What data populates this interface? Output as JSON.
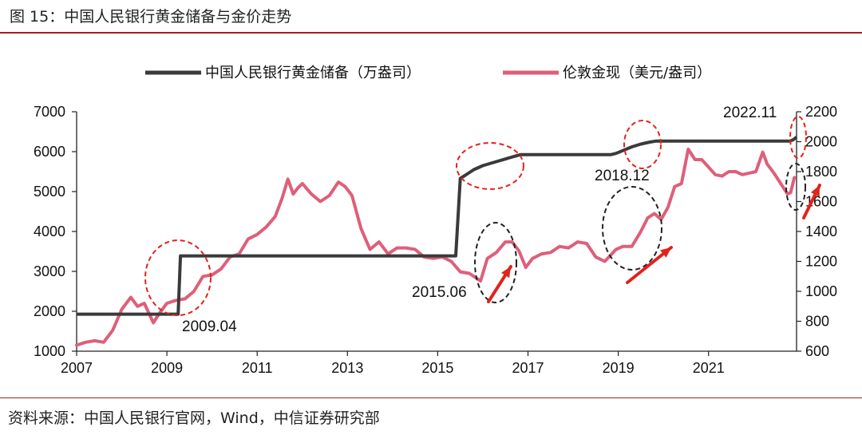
{
  "figure": {
    "title": "图 15：中国人民银行黄金储备与金价走势",
    "source": "资料来源：中国人民银行官网，Wind，中信证券研究部"
  },
  "chart_data": {
    "type": "line",
    "x_ticks": [
      "2007",
      "2009",
      "2011",
      "2013",
      "2015",
      "2017",
      "2019",
      "2021"
    ],
    "x_range": [
      2007.0,
      2022.95
    ],
    "y_left": {
      "ticks": [
        1000,
        2000,
        3000,
        4000,
        5000,
        6000,
        7000
      ],
      "range": [
        1000,
        7000
      ]
    },
    "y_right": {
      "ticks": [
        600,
        800,
        1000,
        1200,
        1400,
        1600,
        1800,
        2000,
        2200
      ],
      "range": [
        600,
        2200
      ]
    },
    "grid": false,
    "legend_position": "top",
    "series": [
      {
        "name": "中国人民银行黄金储备（万盎司）",
        "axis": "left",
        "color": "#3a3a3a",
        "x": [
          2007.0,
          2009.0,
          2009.25,
          2009.3,
          2015.4,
          2015.5,
          2015.6,
          2015.8,
          2016.0,
          2016.3,
          2016.6,
          2016.83,
          2018.83,
          2018.95,
          2019.1,
          2019.3,
          2019.5,
          2019.7,
          2019.83,
          2022.8,
          2022.88,
          2022.95
        ],
        "y": [
          1929,
          1929,
          1929,
          3389,
          3389,
          5332,
          5400,
          5550,
          5650,
          5750,
          5850,
          5924,
          5924,
          5956,
          6026,
          6120,
          6190,
          6240,
          6264,
          6264,
          6300,
          6367
        ]
      },
      {
        "name": "伦敦金现（美元/盎司）",
        "axis": "right",
        "color": "#de5f7a",
        "x": [
          2007.0,
          2007.2,
          2007.4,
          2007.6,
          2007.8,
          2008.0,
          2008.2,
          2008.35,
          2008.5,
          2008.7,
          2008.85,
          2009.0,
          2009.2,
          2009.4,
          2009.6,
          2009.8,
          2010.0,
          2010.2,
          2010.4,
          2010.6,
          2010.8,
          2011.0,
          2011.2,
          2011.4,
          2011.55,
          2011.68,
          2011.8,
          2011.9,
          2012.0,
          2012.2,
          2012.4,
          2012.6,
          2012.8,
          2012.95,
          2013.1,
          2013.3,
          2013.5,
          2013.7,
          2013.9,
          2014.1,
          2014.3,
          2014.5,
          2014.7,
          2014.9,
          2015.1,
          2015.3,
          2015.5,
          2015.7,
          2015.95,
          2016.1,
          2016.3,
          2016.5,
          2016.65,
          2016.8,
          2016.95,
          2017.1,
          2017.3,
          2017.5,
          2017.7,
          2017.9,
          2018.1,
          2018.3,
          2018.5,
          2018.7,
          2018.95,
          2019.1,
          2019.3,
          2019.5,
          2019.65,
          2019.8,
          2019.95,
          2020.1,
          2020.25,
          2020.4,
          2020.55,
          2020.7,
          2020.85,
          2021.0,
          2021.15,
          2021.3,
          2021.45,
          2021.6,
          2021.75,
          2021.9,
          2022.05,
          2022.2,
          2022.3,
          2022.45,
          2022.6,
          2022.75,
          2022.82,
          2022.9
        ],
        "y": [
          640,
          660,
          670,
          660,
          740,
          880,
          960,
          900,
          920,
          790,
          860,
          920,
          940,
          950,
          1000,
          1100,
          1110,
          1150,
          1230,
          1250,
          1350,
          1380,
          1430,
          1500,
          1620,
          1750,
          1650,
          1690,
          1720,
          1650,
          1600,
          1640,
          1730,
          1700,
          1640,
          1420,
          1280,
          1330,
          1250,
          1290,
          1290,
          1280,
          1230,
          1220,
          1230,
          1200,
          1130,
          1120,
          1070,
          1220,
          1260,
          1330,
          1330,
          1270,
          1160,
          1220,
          1250,
          1260,
          1300,
          1290,
          1330,
          1320,
          1230,
          1200,
          1280,
          1300,
          1300,
          1400,
          1490,
          1520,
          1480,
          1560,
          1700,
          1720,
          1950,
          1880,
          1880,
          1830,
          1780,
          1770,
          1800,
          1800,
          1780,
          1790,
          1800,
          1930,
          1850,
          1790,
          1720,
          1650,
          1660,
          1760
        ]
      }
    ],
    "annotations": {
      "labels": [
        "2009.04",
        "2015.06",
        "2018.12",
        "2022.11"
      ]
    }
  }
}
